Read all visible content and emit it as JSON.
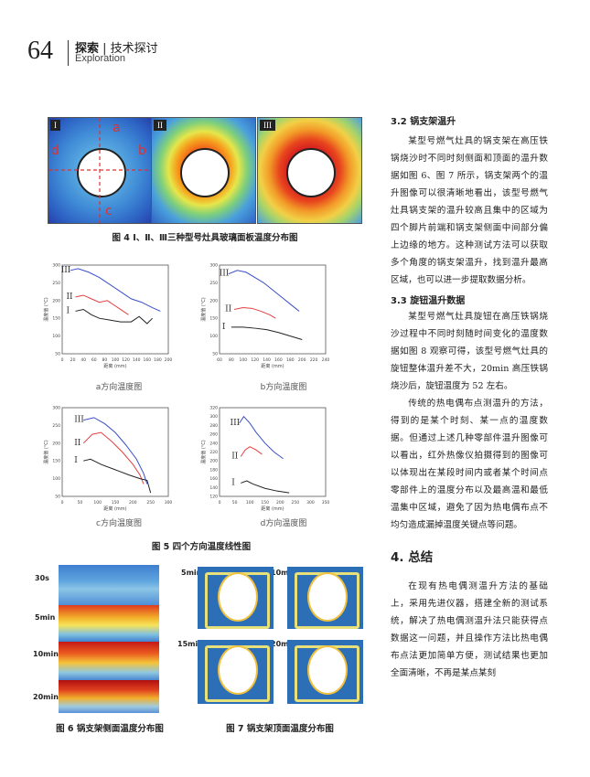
{
  "header": {
    "page_number": "64",
    "section_main": "探索",
    "section_sub": "技术探讨",
    "section_en": "Exploration"
  },
  "fig4": {
    "panels": [
      "I",
      "II",
      "III"
    ],
    "point_labels": [
      "a",
      "b",
      "c",
      "d"
    ],
    "caption": "图 4  Ⅰ、Ⅱ、Ⅲ三种型号灶具玻璃面板温度分布图"
  },
  "fig5": {
    "caption": "图 5  四个方向温度线性图",
    "subcaptions": [
      "a方向温度图",
      "b方向温度图",
      "c方向温度图",
      "d方向温度图"
    ],
    "series_labels": [
      "III",
      "II",
      "I"
    ]
  },
  "chart_data": [
    {
      "type": "line",
      "title": "a方向温度图",
      "xlabel": "距离 (mm)",
      "ylabel": "温度值 (°C)",
      "x_ticks": [
        0,
        20,
        40,
        60,
        80,
        100,
        120,
        140,
        160,
        180,
        200
      ],
      "y_ticks": [
        50,
        100,
        150,
        200,
        250,
        300
      ],
      "xlim": [
        0,
        200
      ],
      "ylim": [
        50,
        300
      ],
      "series": [
        {
          "name": "III",
          "color": "#3a4fc8",
          "x": [
            15,
            30,
            50,
            70,
            90,
            110,
            130,
            150,
            170,
            185
          ],
          "y": [
            285,
            290,
            280,
            265,
            245,
            225,
            205,
            195,
            180,
            170
          ]
        },
        {
          "name": "II",
          "color": "#e04040",
          "x": [
            25,
            40,
            55,
            70,
            85,
            100,
            115,
            125
          ],
          "y": [
            210,
            215,
            205,
            195,
            200,
            185,
            170,
            160
          ]
        },
        {
          "name": "I",
          "color": "#222222",
          "x": [
            25,
            40,
            55,
            70,
            90,
            110,
            130,
            145,
            160,
            170
          ],
          "y": [
            170,
            175,
            160,
            150,
            145,
            140,
            140,
            155,
            135,
            150
          ]
        }
      ]
    },
    {
      "type": "line",
      "title": "b方向温度图",
      "xlabel": "距离 (mm)",
      "ylabel": "温度值 (°C)",
      "x_ticks": [
        60,
        80,
        100,
        120,
        140,
        160,
        180,
        200,
        220,
        240
      ],
      "y_ticks": [
        50,
        100,
        150,
        200,
        250,
        300
      ],
      "xlim": [
        60,
        240
      ],
      "ylim": [
        50,
        300
      ],
      "series": [
        {
          "name": "III",
          "color": "#3a4fc8",
          "x": [
            75,
            90,
            105,
            120,
            135,
            150,
            165,
            180,
            195
          ],
          "y": [
            275,
            285,
            280,
            265,
            250,
            230,
            210,
            190,
            170
          ]
        },
        {
          "name": "II",
          "color": "#e04040",
          "x": [
            85,
            100,
            115,
            130,
            145,
            155
          ],
          "y": [
            175,
            180,
            178,
            170,
            160,
            150
          ]
        },
        {
          "name": "I",
          "color": "#222222",
          "x": [
            80,
            100,
            120,
            140,
            160,
            180,
            200
          ],
          "y": [
            125,
            125,
            122,
            118,
            110,
            100,
            90
          ]
        }
      ]
    },
    {
      "type": "line",
      "title": "c方向温度图",
      "xlabel": "距离 (mm)",
      "ylabel": "温度值 (°C)",
      "x_ticks": [
        0,
        50,
        100,
        150,
        200,
        250,
        300
      ],
      "y_ticks": [
        50,
        100,
        150,
        200,
        250,
        300
      ],
      "xlim": [
        0,
        300
      ],
      "ylim": [
        50,
        300
      ],
      "series": [
        {
          "name": "III",
          "color": "#3a4fc8",
          "x": [
            60,
            90,
            120,
            150,
            180,
            210,
            230,
            240
          ],
          "y": [
            265,
            272,
            255,
            230,
            195,
            155,
            115,
            85
          ]
        },
        {
          "name": "II",
          "color": "#e04040",
          "x": [
            60,
            85,
            110,
            140,
            170,
            200,
            220,
            230
          ],
          "y": [
            200,
            225,
            230,
            205,
            175,
            140,
            110,
            85
          ]
        },
        {
          "name": "I",
          "color": "#222222",
          "x": [
            60,
            80,
            110,
            150,
            190,
            220,
            240,
            250
          ],
          "y": [
            150,
            155,
            140,
            125,
            110,
            100,
            95,
            60
          ]
        }
      ]
    },
    {
      "type": "line",
      "title": "d方向温度图",
      "xlabel": "距离 (mm)",
      "ylabel": "温度值 (°C)",
      "x_ticks": [
        0,
        50,
        100,
        150,
        200,
        250,
        300,
        350
      ],
      "y_ticks": [
        120,
        140,
        160,
        180,
        200,
        220,
        240,
        260,
        280,
        300,
        320
      ],
      "xlim": [
        0,
        350
      ],
      "ylim": [
        120,
        320
      ],
      "series": [
        {
          "name": "III",
          "color": "#3a4fc8",
          "x": [
            65,
            80,
            100,
            120,
            150,
            180,
            210
          ],
          "y": [
            285,
            300,
            285,
            265,
            240,
            220,
            205
          ]
        },
        {
          "name": "II",
          "color": "#e04040",
          "x": [
            70,
            85,
            100,
            120,
            140
          ],
          "y": [
            210,
            225,
            232,
            225,
            215
          ]
        },
        {
          "name": "I",
          "color": "#222222",
          "x": [
            70,
            90,
            110,
            150,
            190,
            230
          ],
          "y": [
            150,
            155,
            148,
            138,
            132,
            128
          ]
        }
      ]
    }
  ],
  "fig6": {
    "time_labels": [
      "30s",
      "5min",
      "10min",
      "20min"
    ],
    "caption": "图 6  锅支架侧面温度分布图"
  },
  "fig7": {
    "time_labels": [
      "5min",
      "10min",
      "15min",
      "20min"
    ],
    "caption": "图 7  锅支架顶面温度分布图"
  },
  "right_column": {
    "s32_title": "3.2 锅支架温升",
    "s32_p1": "某型号燃气灶具的锅支架在高压铁锅烧沙时不同时刻侧面和顶面的温升数据如图 6、图 7 所示，锅支架两个的温升图像可以很清晰地看出，该型号燃气灶具锅支架的温升较高且集中的区域为四个脚片前端和锅支架侧面中间部分偏上边缘的地方。这种测试方法可以获取多个角度的锅支架温升，找到温升最高区域，也可以进一步提取数据分析。",
    "s33_title": "3.3 旋钮温升数据",
    "s33_p1": "某型号燃气灶具旋钮在高压铁锅烧沙过程中不同时刻随时间变化的温度数据如图 8 观察可得，该型号燃气灶具的旋钮整体温升差不大，20min 高压铁锅烧沙后，旋钮温度为 52 左右。",
    "s33_p2": "传统的热电偶布点测温升的方法，得到的是某个时刻、某一点的温度数据。但通过上述几种零部件温升图像可以看出，红外热像仪拍摄得到的图像可以体现出在某段时间内或者某个时间点零部件上的温度分布以及最高温和最低温集中区域，避免了因为热电偶布点不均匀造成漏掉温度关键点等问题。",
    "s4_title": "4. 总结",
    "s4_p1": "在现有热电偶测温升方法的基础上，采用先进仪器，搭建全新的测试系统，解决了热电偶测温升法只能获得点数据这一问题，并且操作方法比热电偶布点法更加简单方便，测试结果也更加全面清晰，不再是某点某刻"
  }
}
